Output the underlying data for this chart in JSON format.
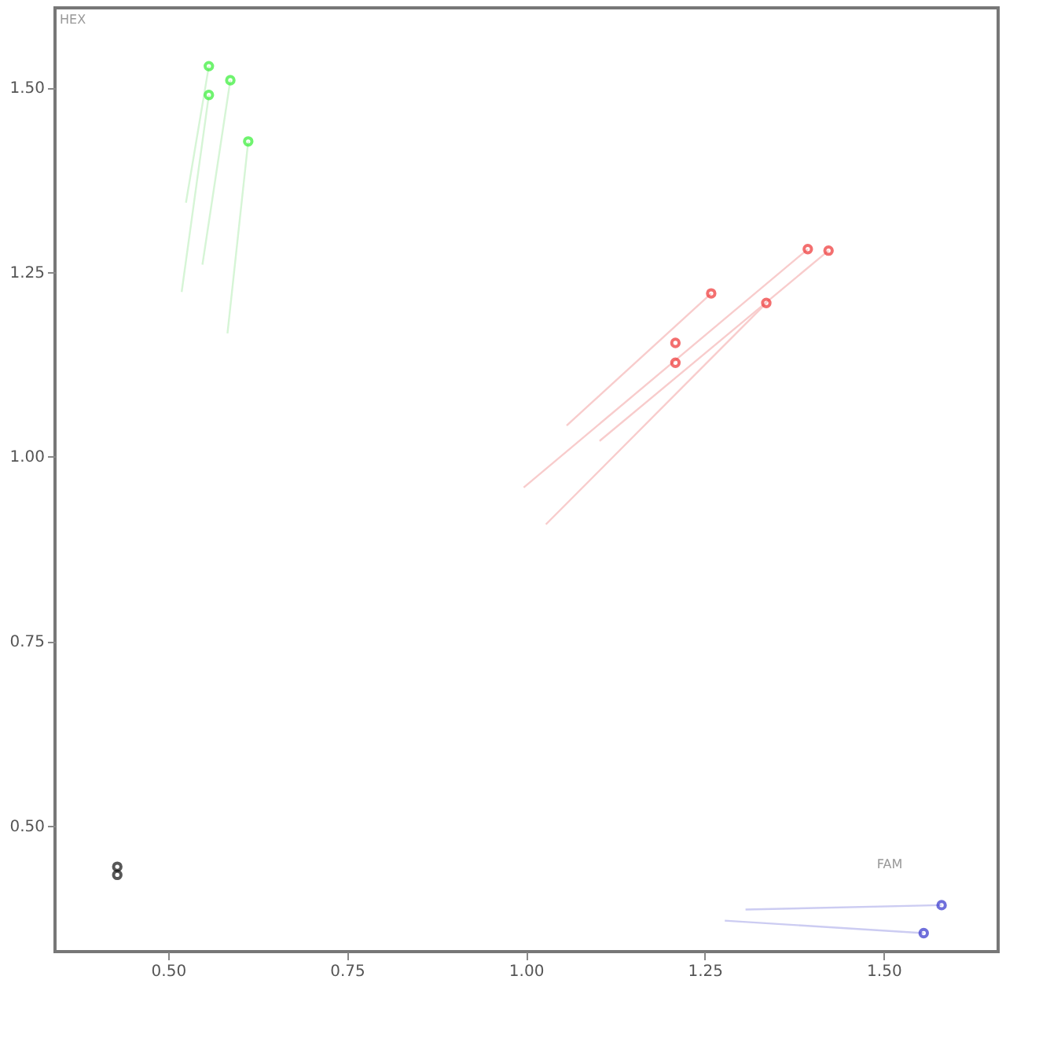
{
  "chart_data": {
    "type": "scatter",
    "xlabel": "FAM",
    "ylabel": "HEX",
    "xlim": [
      0.342,
      1.66
    ],
    "ylim": [
      0.329,
      1.608
    ],
    "xticks": [
      {
        "value": 0.5,
        "label": "0.50"
      },
      0.75,
      {
        "value": 1.0,
        "label": "1.00"
      },
      1.25,
      {
        "value": 1.5,
        "label": "1.50"
      }
    ],
    "yticks": [
      {
        "value": 0.5,
        "label": "0.50"
      },
      0.75,
      {
        "value": 1.0,
        "label": "1.00"
      },
      1.25,
      {
        "value": 1.5,
        "label": "1.50"
      }
    ],
    "grid": false,
    "marker": "circle",
    "series": [
      {
        "type": "line",
        "marker": "none",
        "color": "#d6f5d6",
        "x": [
          0.525,
          0.557
        ],
        "values": [
          1.344,
          1.529
        ]
      },
      {
        "type": "line",
        "marker": "none",
        "color": "#d6f5d6",
        "x": [
          0.548,
          0.587
        ],
        "values": [
          1.26,
          1.51
        ]
      },
      {
        "type": "line",
        "marker": "none",
        "color": "#d6f5d6",
        "x": [
          0.519,
          0.557
        ],
        "values": [
          1.223,
          1.49
        ]
      },
      {
        "type": "line",
        "marker": "none",
        "color": "#d6f5d6",
        "x": [
          0.583,
          0.612
        ],
        "values": [
          1.167,
          1.427
        ]
      },
      {
        "type": "line",
        "marker": "none",
        "color": "#f8cccc",
        "x": [
          0.997,
          1.394
        ],
        "values": [
          0.958,
          1.281
        ]
      },
      {
        "type": "line",
        "marker": "none",
        "color": "#f8cccc",
        "x": [
          1.103,
          1.423
        ],
        "values": [
          1.021,
          1.279
        ]
      },
      {
        "type": "line",
        "marker": "none",
        "color": "#f8cccc",
        "x": [
          1.057,
          1.259
        ],
        "values": [
          1.042,
          1.221
        ]
      },
      {
        "type": "line",
        "marker": "none",
        "color": "#f8cccc",
        "x": [
          1.028,
          1.336
        ],
        "values": [
          0.908,
          1.208
        ]
      },
      {
        "type": "line",
        "marker": "none",
        "color": "#ccccf2",
        "x": [
          1.307,
          1.581
        ],
        "values": [
          0.386,
          0.392
        ]
      },
      {
        "type": "line",
        "marker": "none",
        "color": "#ccccf2",
        "x": [
          1.278,
          1.556
        ],
        "values": [
          0.371,
          0.354
        ]
      },
      {
        "color": "#33ee33",
        "x": [
          0.557,
          0.587,
          0.557,
          0.612
        ],
        "values": [
          1.529,
          1.51,
          1.49,
          1.427
        ]
      },
      {
        "color": "#ee3333",
        "x": [
          1.394,
          1.423,
          1.259,
          1.336,
          1.209,
          1.209
        ],
        "values": [
          1.281,
          1.279,
          1.221,
          1.208,
          1.154,
          1.127
        ]
      },
      {
        "color": "#111111",
        "x": [
          0.429,
          0.429
        ],
        "values": [
          0.444,
          0.433
        ]
      },
      {
        "color": "#3333cc",
        "x": [
          1.581,
          1.556
        ],
        "values": [
          0.392,
          0.354
        ]
      }
    ]
  }
}
